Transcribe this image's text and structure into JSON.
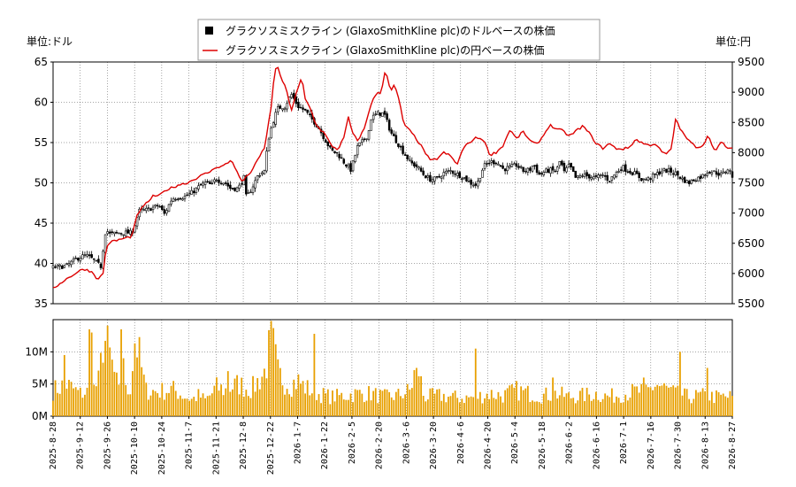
{
  "chart_data": {
    "type": "candlestick",
    "legend": {
      "placement": "top-center",
      "entries": [
        {
          "label": "グラクソスミスクライン (GlaxoSmithKline plc)のドルベースの株価",
          "marker": "square",
          "color": "#000000"
        },
        {
          "label": "グラクソスミスクライン (GlaxoSmithKline plc)の円ベースの株価",
          "marker": "line",
          "color": "#dd0000"
        }
      ]
    },
    "left_axis": {
      "unit_label": "単位:ドル",
      "ylim": [
        35,
        65
      ],
      "ticks": [
        35,
        40,
        45,
        50,
        55,
        60,
        65
      ]
    },
    "right_axis": {
      "unit_label": "単位:円",
      "ylim": [
        5500,
        9500
      ],
      "ticks": [
        5500,
        6000,
        6500,
        7000,
        7500,
        8000,
        8500,
        9000,
        9500
      ]
    },
    "volume_axis": {
      "ylim": [
        0,
        15000000
      ],
      "ticks": [
        {
          "value": 0,
          "label": "0M"
        },
        {
          "value": 5000000,
          "label": "5M"
        },
        {
          "value": 10000000,
          "label": "10M"
        }
      ]
    },
    "x_ticks": [
      "2025-8-28",
      "2025-9-12",
      "2025-9-26",
      "2025-10-10",
      "2025-10-24",
      "2025-11-7",
      "2025-11-21",
      "2025-12-8",
      "2025-12-22",
      "2026-1-7",
      "2026-1-22",
      "2026-2-5",
      "2026-2-20",
      "2026-3-6",
      "2026-3-20",
      "2026-4-6",
      "2026-4-20",
      "2026-5-4",
      "2026-5-18",
      "2026-6-2",
      "2026-6-16",
      "2026-7-1",
      "2026-7-16",
      "2026-7-30",
      "2026-8-13",
      "2026-8-27"
    ],
    "grid": true,
    "usd_close_keypoints": [
      [
        0,
        39.5
      ],
      [
        1,
        39.7
      ],
      [
        2,
        40.8
      ],
      [
        2.5,
        41
      ],
      [
        3,
        40.5
      ],
      [
        3.6,
        39.6
      ],
      [
        4,
        44.5
      ],
      [
        4.2,
        43.6
      ],
      [
        5,
        43.8
      ],
      [
        5.9,
        43.8
      ],
      [
        6,
        44
      ],
      [
        6.5,
        46.5
      ],
      [
        7,
        46.6
      ],
      [
        7.5,
        46.9
      ],
      [
        8,
        47.2
      ],
      [
        8.4,
        46.1
      ],
      [
        9,
        48.1
      ],
      [
        9.5,
        48.2
      ],
      [
        10,
        48.3
      ],
      [
        10.5,
        48.8
      ],
      [
        11,
        49.5
      ],
      [
        11.5,
        50
      ],
      [
        12,
        49.7
      ],
      [
        12.3,
        50.6
      ],
      [
        12.6,
        50.2
      ],
      [
        13,
        50
      ],
      [
        13.4,
        49.3
      ],
      [
        14,
        49.3
      ],
      [
        14.4,
        50.8
      ],
      [
        14.6,
        48.1
      ],
      [
        15,
        49.3
      ],
      [
        15.5,
        51
      ],
      [
        16,
        51.5
      ],
      [
        16.2,
        55
      ],
      [
        16.5,
        57
      ],
      [
        16.8,
        58.5
      ],
      [
        17,
        59.3
      ],
      [
        17.5,
        59.5
      ],
      [
        18,
        61
      ],
      [
        18.5,
        59.5
      ],
      [
        19,
        59
      ],
      [
        19.5,
        58
      ],
      [
        20,
        57
      ],
      [
        20.5,
        55.5
      ],
      [
        21,
        54
      ],
      [
        21.5,
        53.6
      ],
      [
        22,
        52.5
      ],
      [
        22.5,
        51.6
      ],
      [
        23,
        54.5
      ],
      [
        23.3,
        55
      ],
      [
        23.8,
        56
      ],
      [
        24,
        58
      ],
      [
        24.5,
        58.6
      ],
      [
        25,
        58.6
      ],
      [
        25.5,
        56.3
      ],
      [
        26,
        55
      ],
      [
        26.3,
        54.2
      ],
      [
        27,
        52.5
      ],
      [
        27.5,
        52
      ],
      [
        28,
        51
      ],
      [
        28.5,
        50.4
      ],
      [
        29,
        50.5
      ],
      [
        29.5,
        51.2
      ],
      [
        30,
        51.5
      ],
      [
        30.5,
        51.1
      ],
      [
        31,
        50.7
      ],
      [
        31.5,
        50
      ],
      [
        32,
        49.7
      ],
      [
        32.5,
        52
      ],
      [
        33,
        52.6
      ],
      [
        33.5,
        52.6
      ],
      [
        34,
        51.7
      ],
      [
        34.5,
        51.9
      ],
      [
        35,
        52.2
      ],
      [
        35.5,
        51.5
      ],
      [
        36,
        51.6
      ],
      [
        36.3,
        52.3
      ],
      [
        36.7,
        51
      ],
      [
        37,
        51.3
      ],
      [
        37.5,
        51.6
      ],
      [
        38,
        51.4
      ],
      [
        38.3,
        52.8
      ],
      [
        38.6,
        51.3
      ],
      [
        39,
        52.2
      ],
      [
        39.5,
        50.5
      ],
      [
        40,
        51
      ],
      [
        41,
        50.6
      ],
      [
        41.5,
        51
      ],
      [
        42,
        50.3
      ],
      [
        42.5,
        51.2
      ],
      [
        43,
        52
      ],
      [
        43.3,
        51.6
      ],
      [
        44,
        51.1
      ],
      [
        44.5,
        50.4
      ],
      [
        45,
        50.5
      ],
      [
        45.5,
        51
      ],
      [
        46,
        51.5
      ],
      [
        46.5,
        51.5
      ],
      [
        47,
        51.2
      ],
      [
        47.5,
        50.5
      ],
      [
        48,
        50
      ],
      [
        48.5,
        50.5
      ],
      [
        49,
        50.8
      ],
      [
        49.5,
        51.5
      ],
      [
        50,
        51.3
      ],
      [
        50.5,
        51
      ],
      [
        51,
        51.8
      ],
      [
        51.5,
        50.2
      ]
    ],
    "jpy_keypoints": [
      [
        0,
        5750
      ],
      [
        0.8,
        5880
      ],
      [
        1.6,
        5990
      ],
      [
        2.3,
        6080
      ],
      [
        3,
        6020
      ],
      [
        3.4,
        5890
      ],
      [
        3.8,
        6020
      ],
      [
        4,
        6400
      ],
      [
        4.2,
        6510
      ],
      [
        5,
        6560
      ],
      [
        5.9,
        6610
      ],
      [
        6,
        6660
      ],
      [
        6.4,
        7000
      ],
      [
        7,
        7150
      ],
      [
        7.6,
        7290
      ],
      [
        8,
        7280
      ],
      [
        8.5,
        7380
      ],
      [
        9,
        7420
      ],
      [
        9.5,
        7470
      ],
      [
        10,
        7490
      ],
      [
        10.5,
        7540
      ],
      [
        11,
        7600
      ],
      [
        11.5,
        7650
      ],
      [
        12,
        7700
      ],
      [
        12.3,
        7770
      ],
      [
        12.6,
        7760
      ],
      [
        13,
        7800
      ],
      [
        13.5,
        7880
      ],
      [
        14,
        7620
      ],
      [
        14.3,
        7520
      ],
      [
        14.6,
        7600
      ],
      [
        15,
        7700
      ],
      [
        15.4,
        7850
      ],
      [
        16,
        8100
      ],
      [
        16.5,
        8800
      ],
      [
        16.7,
        9300
      ],
      [
        16.9,
        9440
      ],
      [
        17.3,
        9200
      ],
      [
        17.6,
        9050
      ],
      [
        18,
        8700
      ],
      [
        18.4,
        9000
      ],
      [
        18.8,
        9250
      ],
      [
        19,
        8900
      ],
      [
        19.4,
        8750
      ],
      [
        19.8,
        8500
      ],
      [
        20,
        8420
      ],
      [
        20.5,
        8320
      ],
      [
        21,
        8120
      ],
      [
        21.5,
        8050
      ],
      [
        22,
        8260
      ],
      [
        22.3,
        8600
      ],
      [
        22.6,
        8320
      ],
      [
        23,
        8200
      ],
      [
        23.5,
        8390
      ],
      [
        24,
        8800
      ],
      [
        24.4,
        8970
      ],
      [
        24.8,
        9000
      ],
      [
        25.1,
        9400
      ],
      [
        25.5,
        9000
      ],
      [
        25.8,
        9130
      ],
      [
        26.2,
        8800
      ],
      [
        26.5,
        8460
      ],
      [
        27,
        8350
      ],
      [
        27.5,
        8210
      ],
      [
        28,
        8040
      ],
      [
        28.5,
        7860
      ],
      [
        29,
        7900
      ],
      [
        29.5,
        8000
      ],
      [
        30,
        7950
      ],
      [
        30.5,
        7800
      ],
      [
        31,
        8080
      ],
      [
        31.5,
        8180
      ],
      [
        32,
        8250
      ],
      [
        32.5,
        8220
      ],
      [
        33,
        7960
      ],
      [
        33.5,
        8010
      ],
      [
        34,
        8120
      ],
      [
        34.5,
        8380
      ],
      [
        35,
        8230
      ],
      [
        35.5,
        8350
      ],
      [
        36,
        8200
      ],
      [
        36.5,
        8130
      ],
      [
        37,
        8270
      ],
      [
        37.5,
        8460
      ],
      [
        38,
        8390
      ],
      [
        38.5,
        8360
      ],
      [
        39,
        8270
      ],
      [
        39.5,
        8360
      ],
      [
        40,
        8440
      ],
      [
        40.5,
        8320
      ],
      [
        41,
        8160
      ],
      [
        41.5,
        8070
      ],
      [
        42,
        8150
      ],
      [
        42.5,
        8070
      ],
      [
        43,
        8060
      ],
      [
        43.5,
        8080
      ],
      [
        44,
        8220
      ],
      [
        44.5,
        8160
      ],
      [
        45,
        8120
      ],
      [
        45.5,
        8150
      ],
      [
        46,
        8000
      ],
      [
        46.3,
        7980
      ],
      [
        46.7,
        8050
      ],
      [
        47,
        8560
      ],
      [
        47.5,
        8340
      ],
      [
        48,
        8200
      ],
      [
        48.5,
        8100
      ],
      [
        49,
        8100
      ],
      [
        49.5,
        8290
      ],
      [
        50,
        8010
      ],
      [
        50.5,
        8180
      ],
      [
        51,
        8060
      ],
      [
        51.3,
        8060
      ]
    ],
    "volume_keypoints": [
      [
        0,
        4.0
      ],
      [
        1,
        5.0
      ],
      [
        2,
        3.5
      ],
      [
        3,
        4.0
      ],
      [
        3.5,
        5.5
      ],
      [
        3.8,
        12.5
      ],
      [
        4.2,
        10
      ],
      [
        5,
        3.5
      ],
      [
        5.8,
        4.0
      ],
      [
        6.2,
        12.5
      ],
      [
        7,
        4.0
      ],
      [
        8,
        3.8
      ],
      [
        9,
        4.2
      ],
      [
        10,
        3.0
      ],
      [
        10.5,
        2.6
      ],
      [
        11,
        3.2
      ],
      [
        11.5,
        2.5
      ],
      [
        12,
        3.5
      ],
      [
        12.3,
        4.5
      ],
      [
        13,
        4.0
      ],
      [
        14,
        5.0
      ],
      [
        14.5,
        4.5
      ],
      [
        15,
        4.2
      ],
      [
        15.5,
        5.5
      ],
      [
        16,
        7.0
      ],
      [
        16.5,
        12.0
      ],
      [
        17,
        6.5
      ],
      [
        17.5,
        5.5
      ],
      [
        18,
        5.0
      ],
      [
        18.5,
        5.5
      ],
      [
        19,
        4.5
      ],
      [
        20,
        3.5
      ],
      [
        21,
        3.0
      ],
      [
        22,
        3.2
      ],
      [
        23,
        3.5
      ],
      [
        24,
        3.5
      ],
      [
        25,
        3.0
      ],
      [
        26,
        3.2
      ],
      [
        27,
        4.0
      ],
      [
        27.5,
        8.5
      ],
      [
        28,
        3.0
      ],
      [
        29,
        3.2
      ],
      [
        30,
        3.0
      ],
      [
        31,
        2.8
      ],
      [
        32,
        3.0
      ],
      [
        33,
        3.5
      ],
      [
        34,
        3.2
      ],
      [
        35,
        4.0
      ],
      [
        36,
        3.5
      ],
      [
        37,
        3.2
      ],
      [
        38,
        3.5
      ],
      [
        39,
        3.0
      ],
      [
        40,
        3.2
      ],
      [
        41,
        3.5
      ],
      [
        42,
        3.0
      ],
      [
        43,
        3.5
      ],
      [
        44,
        3.8
      ],
      [
        45,
        4.0
      ],
      [
        45.5,
        5.0
      ],
      [
        46,
        4.5
      ],
      [
        47,
        3.5
      ],
      [
        48,
        3.0
      ],
      [
        49,
        3.2
      ],
      [
        50,
        3.0
      ],
      [
        51,
        3.0
      ]
    ],
    "volume_spikes": [
      [
        5,
        9.5
      ],
      [
        16,
        13.5
      ],
      [
        17,
        13
      ],
      [
        30,
        13.5
      ],
      [
        31,
        9
      ],
      [
        77,
        7
      ],
      [
        115,
        12.8
      ],
      [
        160,
        7.5
      ],
      [
        186,
        10.5
      ],
      [
        220,
        6
      ],
      [
        260,
        6
      ],
      [
        276,
        10
      ],
      [
        288,
        7.5
      ]
    ],
    "volume_unit": 1000000
  }
}
